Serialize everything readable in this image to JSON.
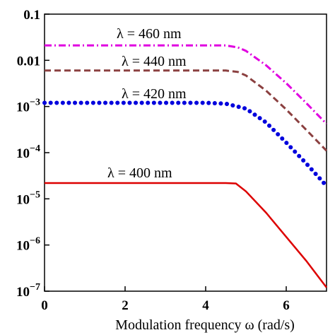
{
  "chart_data": {
    "type": "line",
    "title": "",
    "xlabel": "Modulation frequency ω (rad/s)",
    "ylabel": "",
    "xlim": [
      0,
      7
    ],
    "ylim": [
      1e-07,
      0.1
    ],
    "yscale": "log",
    "grid": false,
    "x_ticks": [
      {
        "value": 0,
        "label": "0"
      },
      {
        "value": 2,
        "label": "2"
      },
      {
        "value": 4,
        "label": "4"
      },
      {
        "value": 6,
        "label": "6"
      }
    ],
    "y_ticks": [
      {
        "value": 0.1,
        "base": "0.1",
        "exp": ""
      },
      {
        "value": 0.01,
        "base": "0.01",
        "exp": ""
      },
      {
        "value": 0.001,
        "base": "10",
        "exp": "−3"
      },
      {
        "value": 0.0001,
        "base": "10",
        "exp": "−4"
      },
      {
        "value": 1e-05,
        "base": "10",
        "exp": "−5"
      },
      {
        "value": 1e-06,
        "base": "10",
        "exp": "−6"
      },
      {
        "value": 1e-07,
        "base": "10",
        "exp": "−7"
      }
    ],
    "series": [
      {
        "name": "λ = 460 nm",
        "color": "#e000e0",
        "style": "dashdot",
        "points": [
          [
            0,
            0.021
          ],
          [
            4.5,
            0.021
          ],
          [
            4.8,
            0.019
          ],
          [
            5.0,
            0.016
          ],
          [
            5.5,
            0.0078
          ],
          [
            6.0,
            0.0032
          ],
          [
            6.5,
            0.00118
          ],
          [
            7.0,
            0.00042
          ]
        ]
      },
      {
        "name": "λ = 440 nm",
        "color": "#8b4040",
        "style": "dashed",
        "points": [
          [
            0,
            0.006
          ],
          [
            4.5,
            0.006
          ],
          [
            4.8,
            0.0056
          ],
          [
            5.0,
            0.0047
          ],
          [
            5.5,
            0.0022
          ],
          [
            6.0,
            0.00086
          ],
          [
            6.5,
            0.00031
          ],
          [
            7.0,
            0.00011
          ]
        ]
      },
      {
        "name": "λ = 420 nm",
        "color": "#0000dd",
        "style": "dotted",
        "points": [
          [
            0,
            0.0012
          ],
          [
            4.0,
            0.0012
          ],
          [
            4.5,
            0.00115
          ],
          [
            5.0,
            0.0009
          ],
          [
            5.5,
            0.00045
          ],
          [
            6.0,
            0.000165
          ],
          [
            6.5,
            5.8e-05
          ],
          [
            7.0,
            1.9e-05
          ]
        ]
      },
      {
        "name": "λ = 400 nm",
        "color": "#dd0000",
        "style": "solid",
        "points": [
          [
            0,
            2.2e-05
          ],
          [
            4.5,
            2.2e-05
          ],
          [
            4.75,
            2.15e-05
          ],
          [
            5.0,
            1.45e-05
          ],
          [
            5.5,
            5e-06
          ],
          [
            6.0,
            1.5e-06
          ],
          [
            6.5,
            4.5e-07
          ],
          [
            7.0,
            1.2e-07
          ]
        ]
      }
    ]
  }
}
